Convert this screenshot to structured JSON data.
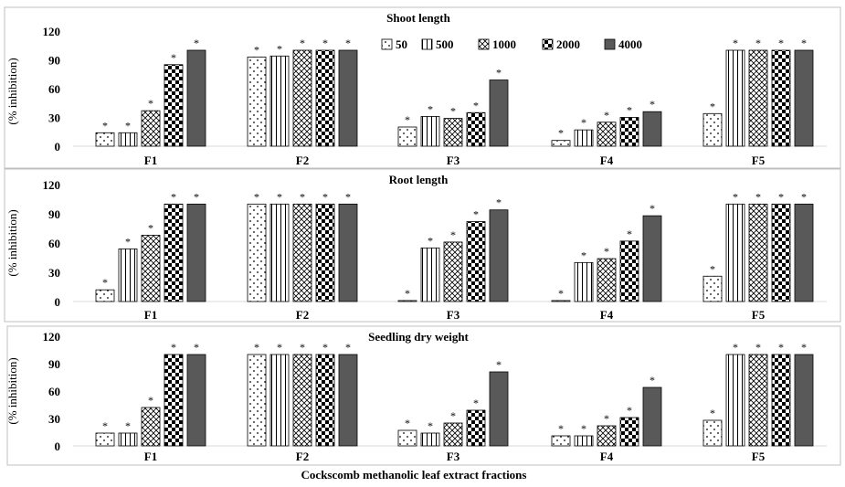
{
  "xlabel": "Cockscomb methanolic leaf extract fractions",
  "legend": {
    "entries": [
      "50",
      "500",
      "1000",
      "2000",
      "4000"
    ]
  },
  "colors": {
    "ink": "#000000",
    "bar_4000": "#595959",
    "frame": "#bfbfbf",
    "background": "#ffffff"
  },
  "chart_data": [
    {
      "type": "bar",
      "title": "Shoot length",
      "ylabel": "(% inhibition)",
      "ylim": [
        0,
        120
      ],
      "yticks": [
        0,
        30,
        60,
        90,
        120
      ],
      "categories": [
        "F1",
        "F2",
        "F3",
        "F4",
        "F5"
      ],
      "significance_marker": "*",
      "series": [
        {
          "name": "50",
          "values": [
            14,
            93,
            20,
            6,
            34
          ]
        },
        {
          "name": "500",
          "values": [
            14,
            94,
            31,
            17,
            100
          ]
        },
        {
          "name": "1000",
          "values": [
            37,
            100,
            29,
            25,
            100
          ]
        },
        {
          "name": "2000",
          "values": [
            85,
            100,
            35,
            30,
            100
          ]
        },
        {
          "name": "4000",
          "values": [
            100,
            100,
            69,
            36,
            100
          ]
        }
      ]
    },
    {
      "type": "bar",
      "title": "Root length",
      "ylabel": "(% inhibition)",
      "ylim": [
        0,
        120
      ],
      "yticks": [
        0,
        30,
        60,
        90,
        120
      ],
      "categories": [
        "F1",
        "F2",
        "F3",
        "F4",
        "F5"
      ],
      "significance_marker": "*",
      "series": [
        {
          "name": "50",
          "values": [
            12,
            100,
            1,
            1,
            26
          ]
        },
        {
          "name": "500",
          "values": [
            54,
            100,
            55,
            40,
            100
          ]
        },
        {
          "name": "1000",
          "values": [
            68,
            100,
            61,
            44,
            100
          ]
        },
        {
          "name": "2000",
          "values": [
            100,
            100,
            82,
            62,
            100
          ]
        },
        {
          "name": "4000",
          "values": [
            100,
            100,
            94,
            88,
            100
          ]
        }
      ]
    },
    {
      "type": "bar",
      "title": "Seedling dry weight",
      "ylabel": "(% inhibition)",
      "ylim": [
        0,
        120
      ],
      "yticks": [
        0,
        30,
        60,
        90,
        120
      ],
      "categories": [
        "F1",
        "F2",
        "F3",
        "F4",
        "F5"
      ],
      "significance_marker": "*",
      "series": [
        {
          "name": "50",
          "values": [
            14,
            100,
            17,
            11,
            28
          ]
        },
        {
          "name": "500",
          "values": [
            14,
            100,
            14,
            11,
            100
          ]
        },
        {
          "name": "1000",
          "values": [
            42,
            100,
            25,
            22,
            100
          ]
        },
        {
          "name": "2000",
          "values": [
            100,
            100,
            39,
            31,
            100
          ]
        },
        {
          "name": "4000",
          "values": [
            100,
            100,
            81,
            64,
            100
          ]
        }
      ]
    }
  ]
}
